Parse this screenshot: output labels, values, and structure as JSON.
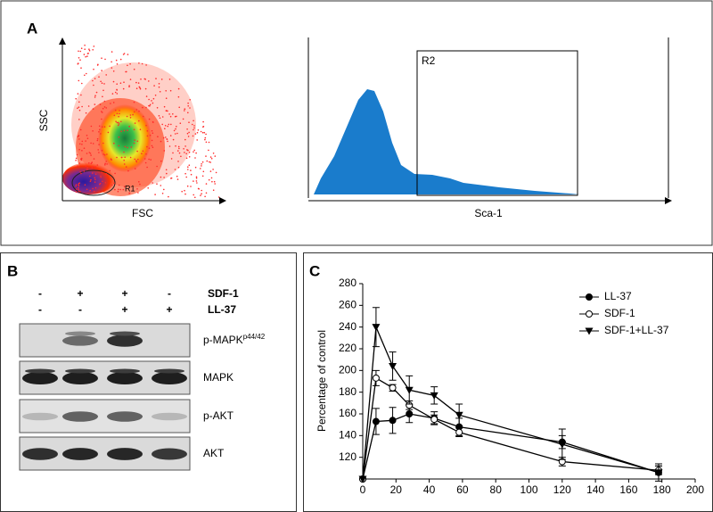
{
  "panel_a": {
    "label": "A",
    "scatter": {
      "y_label": "SSC",
      "x_label": "FSC",
      "gate": "R1"
    },
    "histogram": {
      "x_label": "Sca-1",
      "gate": "R2"
    }
  },
  "panel_b": {
    "label": "B",
    "treatments": [
      {
        "name": "SDF-1",
        "signs": [
          "-",
          "+",
          "+",
          "-"
        ]
      },
      {
        "name": "LL-37",
        "signs": [
          "-",
          "-",
          "+",
          "+"
        ]
      }
    ],
    "blots": [
      {
        "name": "p-MAPK",
        "superscript": "p44/42"
      },
      {
        "name": "MAPK"
      },
      {
        "name": "p-AKT"
      },
      {
        "name": "AKT"
      }
    ]
  },
  "panel_c": {
    "label": "C"
  },
  "chart_data": {
    "type": "line",
    "y_label": "Percentage of control",
    "x": [
      0,
      8,
      18,
      28,
      43,
      58,
      120,
      178
    ],
    "series": [
      {
        "name": "LL-37",
        "color": "#000000",
        "marker": "circle-filled",
        "values": [
          100,
          153,
          154,
          160,
          156,
          148,
          134,
          106
        ],
        "errors": [
          null,
          12,
          12,
          8,
          6,
          8,
          6,
          6
        ]
      },
      {
        "name": "SDF-1",
        "color": "#000000",
        "marker": "circle-open",
        "values": [
          100,
          193,
          184,
          168,
          155,
          143,
          116,
          108
        ],
        "errors": [
          null,
          7,
          3,
          4,
          4,
          4,
          4,
          4
        ]
      },
      {
        "name": "SDF-1+LL-37",
        "color": "#000000",
        "marker": "triangle-down",
        "values": [
          100,
          240,
          204,
          182,
          177,
          159,
          132,
          106
        ],
        "errors": [
          null,
          18,
          13,
          13,
          8,
          10,
          14,
          8
        ]
      }
    ],
    "xlim": [
      0,
      200
    ],
    "xticks": [
      0,
      20,
      40,
      60,
      80,
      100,
      120,
      140,
      160,
      180,
      200
    ],
    "ylim": [
      100,
      280
    ],
    "yticks": [
      120,
      140,
      160,
      180,
      200,
      220,
      240,
      260,
      280
    ],
    "legend": "upper right"
  }
}
